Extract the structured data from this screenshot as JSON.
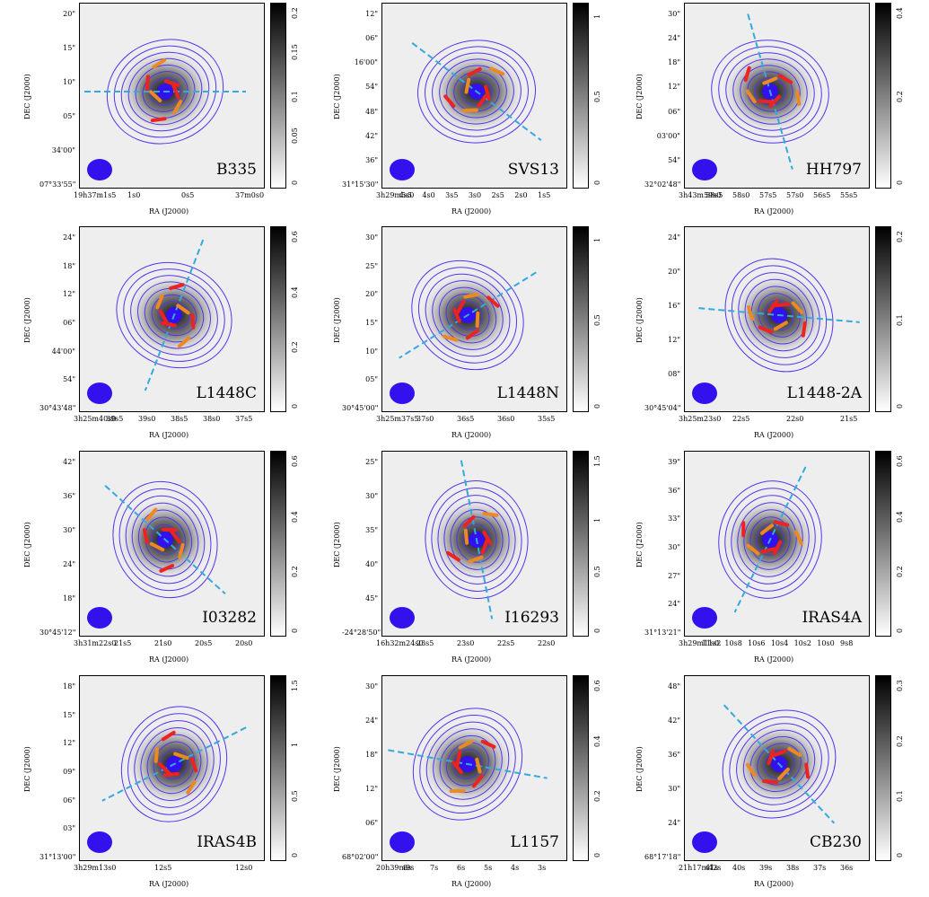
{
  "colors": {
    "contour": "#5533ee",
    "red_vector": "#ee2222",
    "orange_vector": "#ee8822",
    "outflow": "#33aadd",
    "beam": "#3311ee"
  },
  "axis_labels": {
    "x": "RA (J2000)",
    "y": "DEC (J2000)"
  },
  "panels": [
    {
      "name": "B335",
      "yticks": [
        "20\"",
        "15\"",
        "10\"",
        "05\"",
        "34'00\"",
        "07°33'55\""
      ],
      "xticks": [
        "19h37m1s5",
        "1s0",
        "0s5",
        "37m0s0"
      ],
      "cbar": [
        "0.2",
        "0.15",
        "0.1",
        "0.05",
        "0"
      ]
    },
    {
      "name": "SVS13",
      "yticks": [
        "12\"",
        "06\"",
        "16'00\"",
        "54\"",
        "48\"",
        "42\"",
        "36\"",
        "31°15'30\""
      ],
      "xticks": [
        "3h29m5s0",
        "4s5",
        "4s0",
        "3s5",
        "3s0",
        "2s5",
        "2s0",
        "1s5"
      ],
      "cbar": [
        "1",
        "0.5",
        "0"
      ]
    },
    {
      "name": "HH797",
      "yticks": [
        "30\"",
        "24\"",
        "18\"",
        "12\"",
        "06\"",
        "03'00\"",
        "54\"",
        "32°02'48\""
      ],
      "xticks": [
        "3h43m59s0",
        "58s5",
        "58s0",
        "57s5",
        "57s0",
        "56s5",
        "55s5"
      ],
      "cbar": [
        "0.4",
        "0.2",
        "0"
      ]
    },
    {
      "name": "L1448C",
      "yticks": [
        "24\"",
        "18\"",
        "12\"",
        "06\"",
        "44'00\"",
        "54\"",
        "30°43'48\""
      ],
      "xticks": [
        "3h25m40s0",
        "39s5",
        "39s0",
        "38s5",
        "38s0",
        "37s5"
      ],
      "cbar": [
        "0.6",
        "0.4",
        "0.2",
        "0"
      ]
    },
    {
      "name": "L1448N",
      "yticks": [
        "30\"",
        "25\"",
        "20\"",
        "15\"",
        "10\"",
        "05\"",
        "30°45'00\""
      ],
      "xticks": [
        "3h25m37s5",
        "37s0",
        "36s5",
        "36s0",
        "35s5"
      ],
      "cbar": [
        "1",
        "0.5",
        "0"
      ]
    },
    {
      "name": "L1448-2A",
      "yticks": [
        "24\"",
        "20\"",
        "16\"",
        "12\"",
        "08\"",
        "30°45'04\""
      ],
      "xticks": [
        "3h25m23s0",
        "22s5",
        "22s0",
        "21s5"
      ],
      "cbar": [
        "0.2",
        "0.1",
        "0"
      ]
    },
    {
      "name": "I03282",
      "yticks": [
        "42\"",
        "36\"",
        "30\"",
        "24\"",
        "18\"",
        "30°45'12\""
      ],
      "xticks": [
        "3h31m22s0",
        "21s5",
        "21s0",
        "20s5",
        "20s0"
      ],
      "cbar": [
        "0.6",
        "0.4",
        "0.2",
        "0"
      ]
    },
    {
      "name": "I16293",
      "yticks": [
        "25\"",
        "30\"",
        "35\"",
        "40\"",
        "45\"",
        "-24°28'50\""
      ],
      "xticks": [
        "16h32m24s0",
        "23s5",
        "23s0",
        "22s5",
        "22s0"
      ],
      "cbar": [
        "1.5",
        "1",
        "0.5",
        "0"
      ]
    },
    {
      "name": "IRAS4A",
      "yticks": [
        "39\"",
        "36\"",
        "33\"",
        "30\"",
        "27\"",
        "24\"",
        "31°13'21\""
      ],
      "xticks": [
        "3h29m11s2",
        "11s0",
        "10s8",
        "10s6",
        "10s4",
        "10s2",
        "10s0",
        "9s8"
      ],
      "cbar": [
        "0.6",
        "0.4",
        "0.2",
        "0"
      ]
    },
    {
      "name": "IRAS4B",
      "yticks": [
        "18\"",
        "15\"",
        "12\"",
        "09\"",
        "06\"",
        "03\"",
        "31°13'00\""
      ],
      "xticks": [
        "3h29m13s0",
        "12s5",
        "12s0"
      ],
      "cbar": [
        "1.5",
        "1",
        "0.5",
        "0"
      ]
    },
    {
      "name": "L1157",
      "yticks": [
        "30\"",
        "24\"",
        "18\"",
        "12\"",
        "06\"",
        "68°02'00\""
      ],
      "xticks": [
        "20h39m9s",
        "8s",
        "7s",
        "6s",
        "5s",
        "4s",
        "3s"
      ],
      "cbar": [
        "0.6",
        "0.4",
        "0.2",
        "0"
      ]
    },
    {
      "name": "CB230",
      "yticks": [
        "48\"",
        "42\"",
        "36\"",
        "30\"",
        "24\"",
        "68°17'18\""
      ],
      "xticks": [
        "21h17m42s",
        "41s",
        "40s",
        "39s",
        "38s",
        "37s",
        "36s"
      ],
      "cbar": [
        "0.3",
        "0.2",
        "0.1",
        "0"
      ]
    }
  ]
}
